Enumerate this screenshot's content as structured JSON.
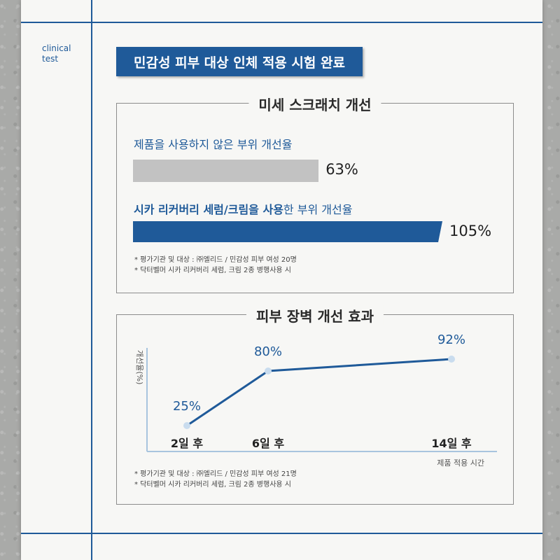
{
  "side_label": [
    "clinical",
    "test"
  ],
  "header": {
    "title": "민감성 피부 대상 인체 적용 시험 완료"
  },
  "chart_data": [
    {
      "type": "bar",
      "title": "미세 스크래치 개선",
      "orientation": "horizontal",
      "categories": [
        "제품을 사용하지 않은 부위 개선율",
        "시카 리커버리 세럼/크림을 사용한 부위 개선율"
      ],
      "category_emphasis": "시카 리커버리 세럼/크림을 사용",
      "values": [
        63,
        105
      ],
      "value_labels": [
        "63%",
        "105%"
      ],
      "xlim": [
        0,
        105
      ],
      "colors": [
        "#c2c2c2",
        "#1f5a99"
      ],
      "notes": [
        "* 평가기관 및 대상 : ㈜엘리드 / 민감성 피부 여성 20명",
        "* 닥터벨머 시카 리커버리 세럼, 크림 2종 병행사용 시"
      ]
    },
    {
      "type": "line",
      "title": "피부 장벽 개선 효과",
      "ylabel": "개선율(%)",
      "xlabel": "제품 적용 시간",
      "categories": [
        "2일 후",
        "6일 후",
        "14일 후"
      ],
      "x_days": [
        2,
        6,
        14
      ],
      "values": [
        25,
        80,
        92
      ],
      "value_labels": [
        "25%",
        "80%",
        "92%"
      ],
      "color": "#1f5a99",
      "notes": [
        "* 평가기관 및 대상 : ㈜엘리드 / 민감성 피부 여성 21명",
        "* 닥터벨머 시카 리커버리 세럼, 크림 2종 병행사용 시"
      ]
    }
  ]
}
